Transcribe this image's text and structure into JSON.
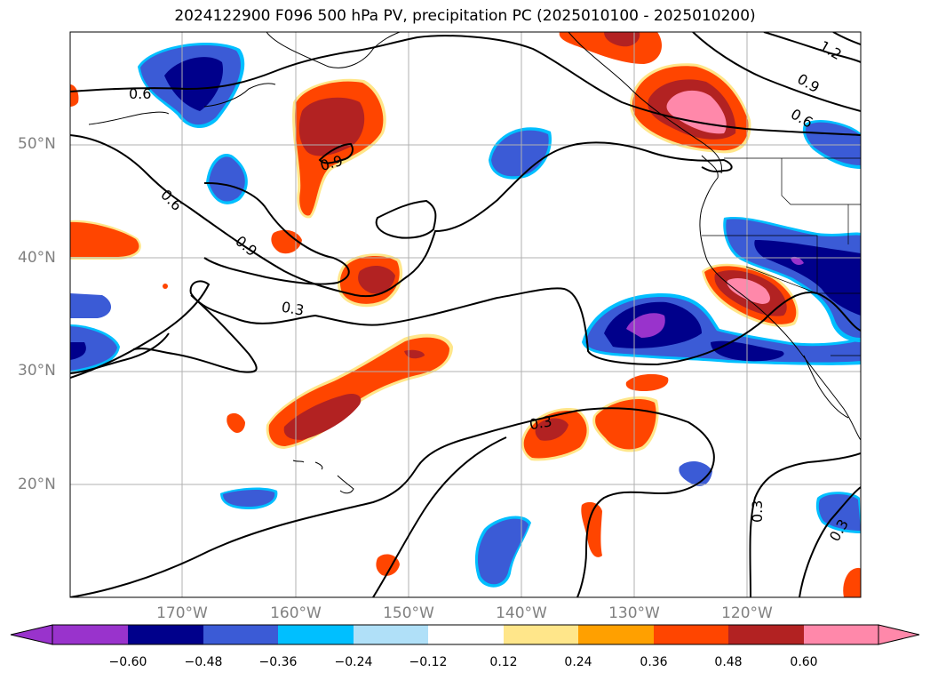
{
  "title": "2024122900 F096 500 hPa PV, precipitation PC (2025010100 - 2025010200)",
  "latitude_labels": [
    "50°N",
    "40°N",
    "30°N",
    "20°N"
  ],
  "longitude_labels": [
    "170°W",
    "160°W",
    "150°W",
    "140°W",
    "130°W",
    "120°W"
  ],
  "contour_labels": [
    "0.6",
    "0.6",
    "0.9",
    "0.3",
    "0.9",
    "0.3",
    "1.2",
    "0.9",
    "0.6",
    "0.3",
    "0.3"
  ],
  "colorbar": {
    "ticks": [
      "−0.60",
      "−0.48",
      "−0.36",
      "−0.24",
      "−0.12",
      "0.12",
      "0.24",
      "0.36",
      "0.48",
      "0.60"
    ],
    "colors": [
      "#9933cc",
      "#00008b",
      "#3b5bd6",
      "#00bfff",
      "#b0e0f8",
      "#ffffff",
      "#ffe68a",
      "#ffa000",
      "#ff4500",
      "#b22222",
      "#ff88aa"
    ]
  },
  "palette": {
    "purple": "#9933cc",
    "navy": "#00008b",
    "blue": "#3b5bd6",
    "cyan": "#00bfff",
    "lightblue": "#b0e0f8",
    "yellow": "#ffe68a",
    "orange": "#ffa000",
    "redorange": "#ff4500",
    "darkred": "#b22222",
    "pink": "#ff88aa"
  }
}
